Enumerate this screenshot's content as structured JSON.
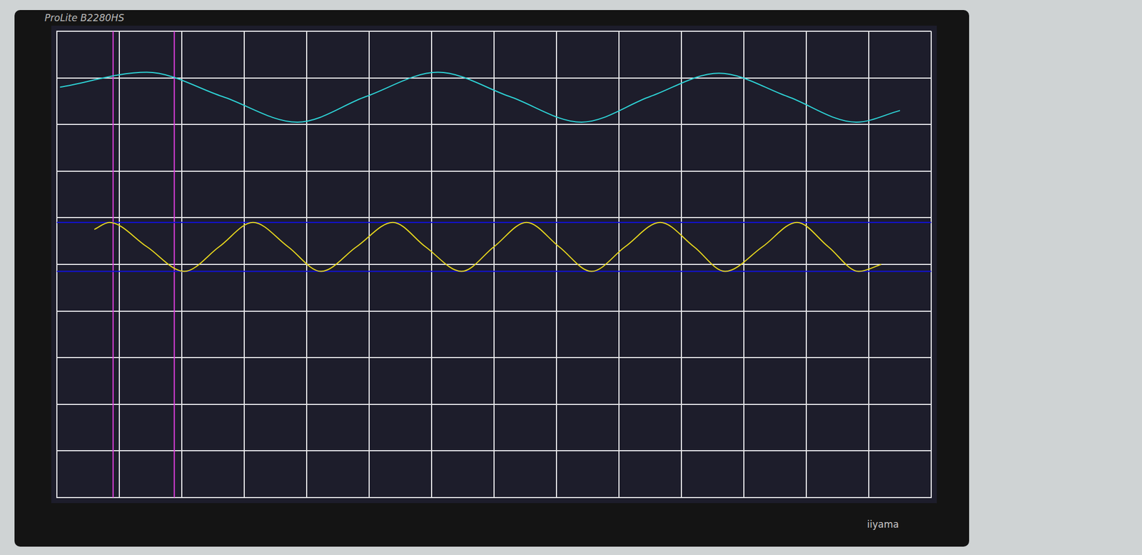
{
  "chart_data": {
    "type": "line",
    "annotations": [
      "ProLite B2280HS",
      "iiyama"
    ],
    "xlim": [
      0,
      14
    ],
    "xticks": [
      0,
      1,
      2,
      3,
      4,
      5,
      6,
      7,
      8,
      9,
      10,
      11,
      12,
      13,
      14
    ],
    "ylim": [
      0,
      10
    ],
    "yticks": [
      0,
      1,
      2,
      3,
      4,
      5,
      6,
      7,
      8,
      9,
      10
    ],
    "grid": true,
    "tick_labels": false,
    "series": [
      {
        "color": "#2ed3d6",
        "marker": "none",
        "line_style": "solid",
        "x": [
          0.05,
          1.44,
          2.65,
          3.85,
          4.95,
          6.1,
          7.25,
          8.4,
          9.5,
          10.6,
          11.7,
          12.8,
          13.5
        ],
        "values": [
          8.8,
          9.12,
          8.6,
          8.05,
          8.6,
          9.12,
          8.6,
          8.05,
          8.6,
          9.1,
          8.6,
          8.05,
          8.3
        ]
      },
      {
        "color": "#e6d61e",
        "marker": "none",
        "line_style": "solid",
        "x": [
          0.6,
          0.84,
          1.44,
          2.04,
          2.6,
          3.14,
          3.7,
          4.23,
          4.8,
          5.38,
          5.9,
          6.48,
          7.0,
          7.52,
          8.04,
          8.56,
          9.1,
          9.66,
          10.2,
          10.7,
          11.3,
          11.85,
          12.35,
          12.84,
          13.2
        ],
        "values": [
          5.75,
          5.9,
          5.38,
          4.85,
          5.38,
          5.9,
          5.38,
          4.85,
          5.38,
          5.9,
          5.38,
          4.85,
          5.38,
          5.9,
          5.38,
          4.85,
          5.38,
          5.9,
          5.38,
          4.85,
          5.38,
          5.9,
          5.38,
          4.85,
          5.0
        ]
      },
      {
        "color": "#1010e0",
        "marker": "none",
        "line_style": "solid",
        "x": [
          0,
          14
        ],
        "values": [
          5.9,
          5.9
        ]
      },
      {
        "color": "#1010e0",
        "marker": "none",
        "line_style": "solid",
        "x": [
          0,
          14
        ],
        "values": [
          4.85,
          4.85
        ]
      },
      {
        "color": "#e040e0",
        "marker": "none",
        "line_style": "solid",
        "x": [
          0.9,
          0.9
        ],
        "values": [
          0,
          10
        ]
      },
      {
        "color": "#e040e0",
        "marker": "none",
        "line_style": "solid",
        "x": [
          1.88,
          1.88
        ],
        "values": [
          0,
          10
        ]
      }
    ]
  }
}
